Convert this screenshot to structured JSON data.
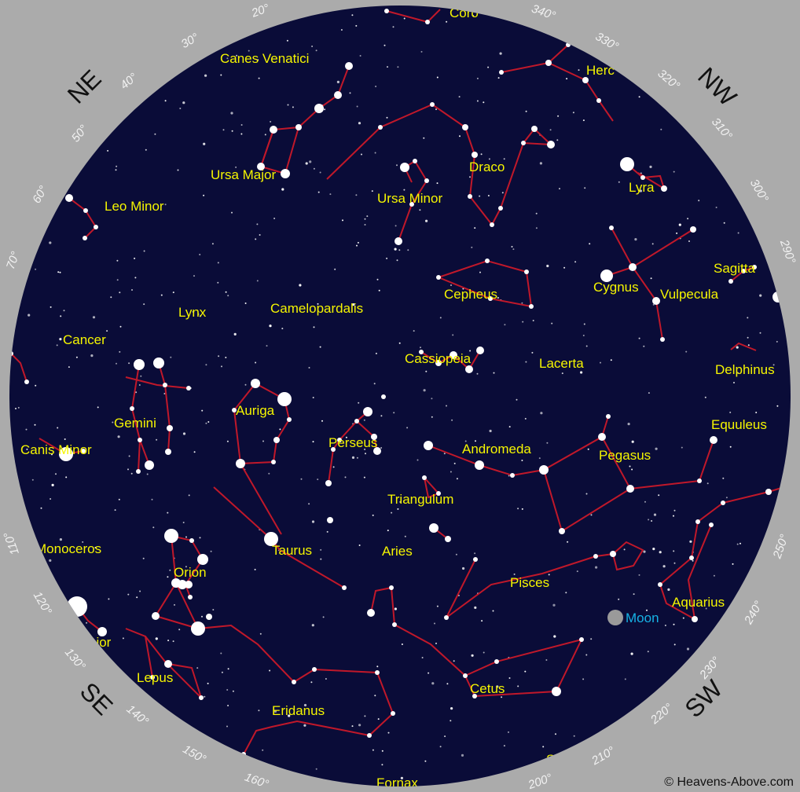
{
  "colors": {
    "sky": "#0a0c38",
    "ring": "#ababab",
    "constellation_line": "#c0182a",
    "constellation_label": "#f5f500",
    "star": "#ffffff",
    "moon": "#9a9a9a",
    "moon_label": "#16b3e6"
  },
  "directions": [
    "NE",
    "NW",
    "SE",
    "SW"
  ],
  "degrees": [
    "20°",
    "30°",
    "40°",
    "50°",
    "60°",
    "70°",
    "110°",
    "120°",
    "130°",
    "140°",
    "150°",
    "160°",
    "200°",
    "210°",
    "220°",
    "230°",
    "240°",
    "250°",
    "290°",
    "300°",
    "310°",
    "320°",
    "330°",
    "340°"
  ],
  "constellations": [
    "Canes Venatici",
    "Ursa Major",
    "Leo Minor",
    "Ursa Minor",
    "Draco",
    "Lyra",
    "Herc",
    "Sagitta",
    "Cepheus",
    "Cygnus",
    "Vulpecula",
    "Lynx",
    "Camelopardalis",
    "Cancer",
    "Cassiopeia",
    "Lacerta",
    "Delphinus",
    "Auriga",
    "Gemini",
    "Perseus",
    "Equuleus",
    "Canis Minor",
    "Andromeda",
    "Pegasus",
    "Triangulum",
    "Monoceros",
    "Taurus",
    "Aries",
    "Orion",
    "Pisces",
    "Aquarius",
    "ajor",
    "Lepus",
    "Cetus",
    "Eridanus",
    "Fornax",
    "Sc",
    "Coro"
  ],
  "moon_label": "Moon",
  "credit": "© Heavens-Above.com"
}
